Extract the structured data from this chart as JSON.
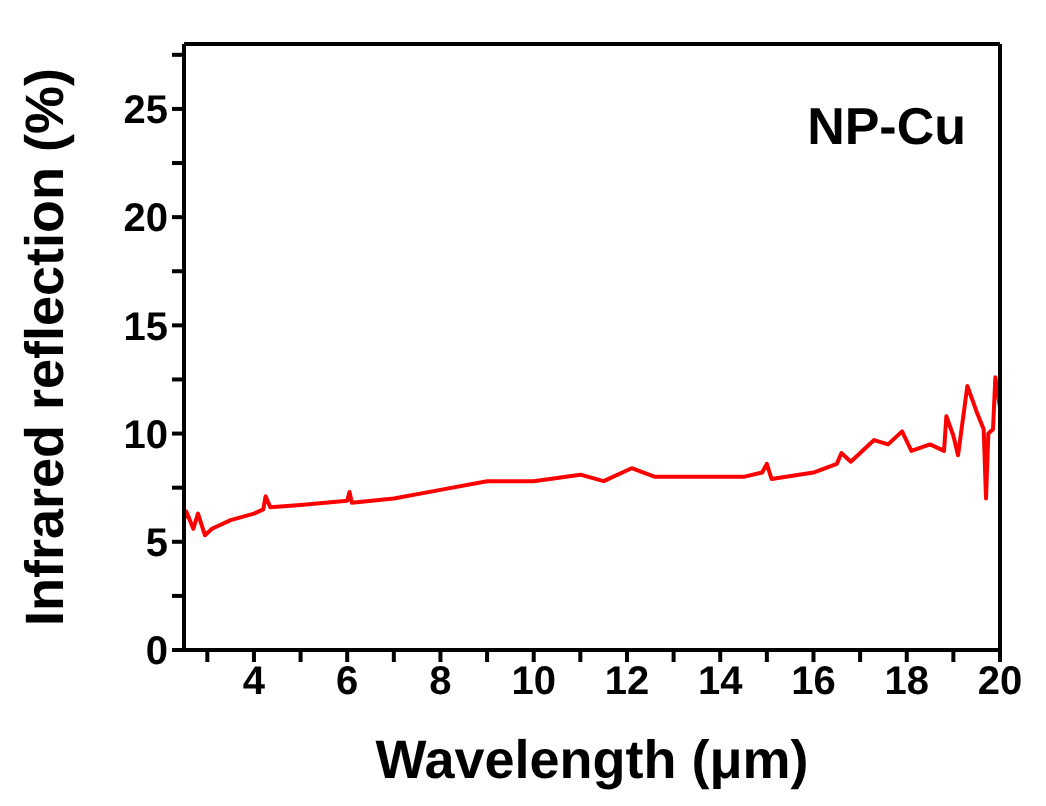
{
  "chart_data": {
    "type": "line",
    "xlabel": "Wavelength (μm)",
    "ylabel": "Infrared reflection (%)",
    "annotations": [
      "NP-Cu"
    ],
    "xlim": [
      2.5,
      20
    ],
    "ylim": [
      0,
      28
    ],
    "xticks": [
      {
        "value": 3,
        "label": null
      },
      4,
      {
        "value": 5,
        "label": null
      },
      6,
      {
        "value": 7,
        "label": null
      },
      8,
      {
        "value": 9,
        "label": null
      },
      10,
      {
        "value": 11,
        "label": null
      },
      12,
      {
        "value": 13,
        "label": null
      },
      14,
      {
        "value": 15,
        "label": null
      },
      16,
      {
        "value": 17,
        "label": null
      },
      18,
      {
        "value": 19,
        "label": null
      },
      20
    ],
    "yticks": [
      0,
      {
        "value": 2.5,
        "label": null
      },
      5,
      {
        "value": 7.5,
        "label": null
      },
      10,
      {
        "value": 12.5,
        "label": null
      },
      15,
      {
        "value": 17.5,
        "label": null
      },
      20,
      {
        "value": 22.5,
        "label": null
      },
      25,
      {
        "value": 27.5,
        "label": null
      }
    ],
    "grid": false,
    "legend": false,
    "marker": "none",
    "line_style": "solid",
    "series": [
      {
        "color": "#ff0000",
        "x": [
          2.5,
          2.55,
          2.7,
          2.8,
          2.95,
          3.1,
          3.5,
          4.0,
          4.2,
          4.25,
          4.35,
          5,
          6,
          6.05,
          6.1,
          7,
          8,
          9,
          10,
          11,
          11.5,
          12.1,
          12.6,
          13.5,
          14.5,
          14.9,
          15,
          15.1,
          16,
          16.5,
          16.6,
          16.8,
          17.3,
          17.6,
          17.9,
          18.1,
          18.5,
          18.8,
          18.85,
          19.0,
          19.1,
          19.3,
          19.5,
          19.65,
          19.7,
          19.75,
          19.85,
          19.9,
          20
        ],
        "values": [
          6.0,
          6.4,
          5.6,
          6.3,
          5.3,
          5.6,
          6.0,
          6.3,
          6.5,
          7.1,
          6.6,
          6.7,
          6.9,
          7.3,
          6.8,
          7.0,
          7.4,
          7.8,
          7.8,
          8.1,
          7.8,
          8.4,
          8.0,
          8.0,
          8.0,
          8.2,
          8.6,
          7.9,
          8.2,
          8.6,
          9.1,
          8.7,
          9.7,
          9.5,
          10.1,
          9.2,
          9.5,
          9.2,
          10.8,
          9.9,
          9.0,
          12.2,
          11.0,
          10.2,
          7.0,
          10.0,
          10.2,
          12.6,
          11.2
        ]
      }
    ]
  }
}
